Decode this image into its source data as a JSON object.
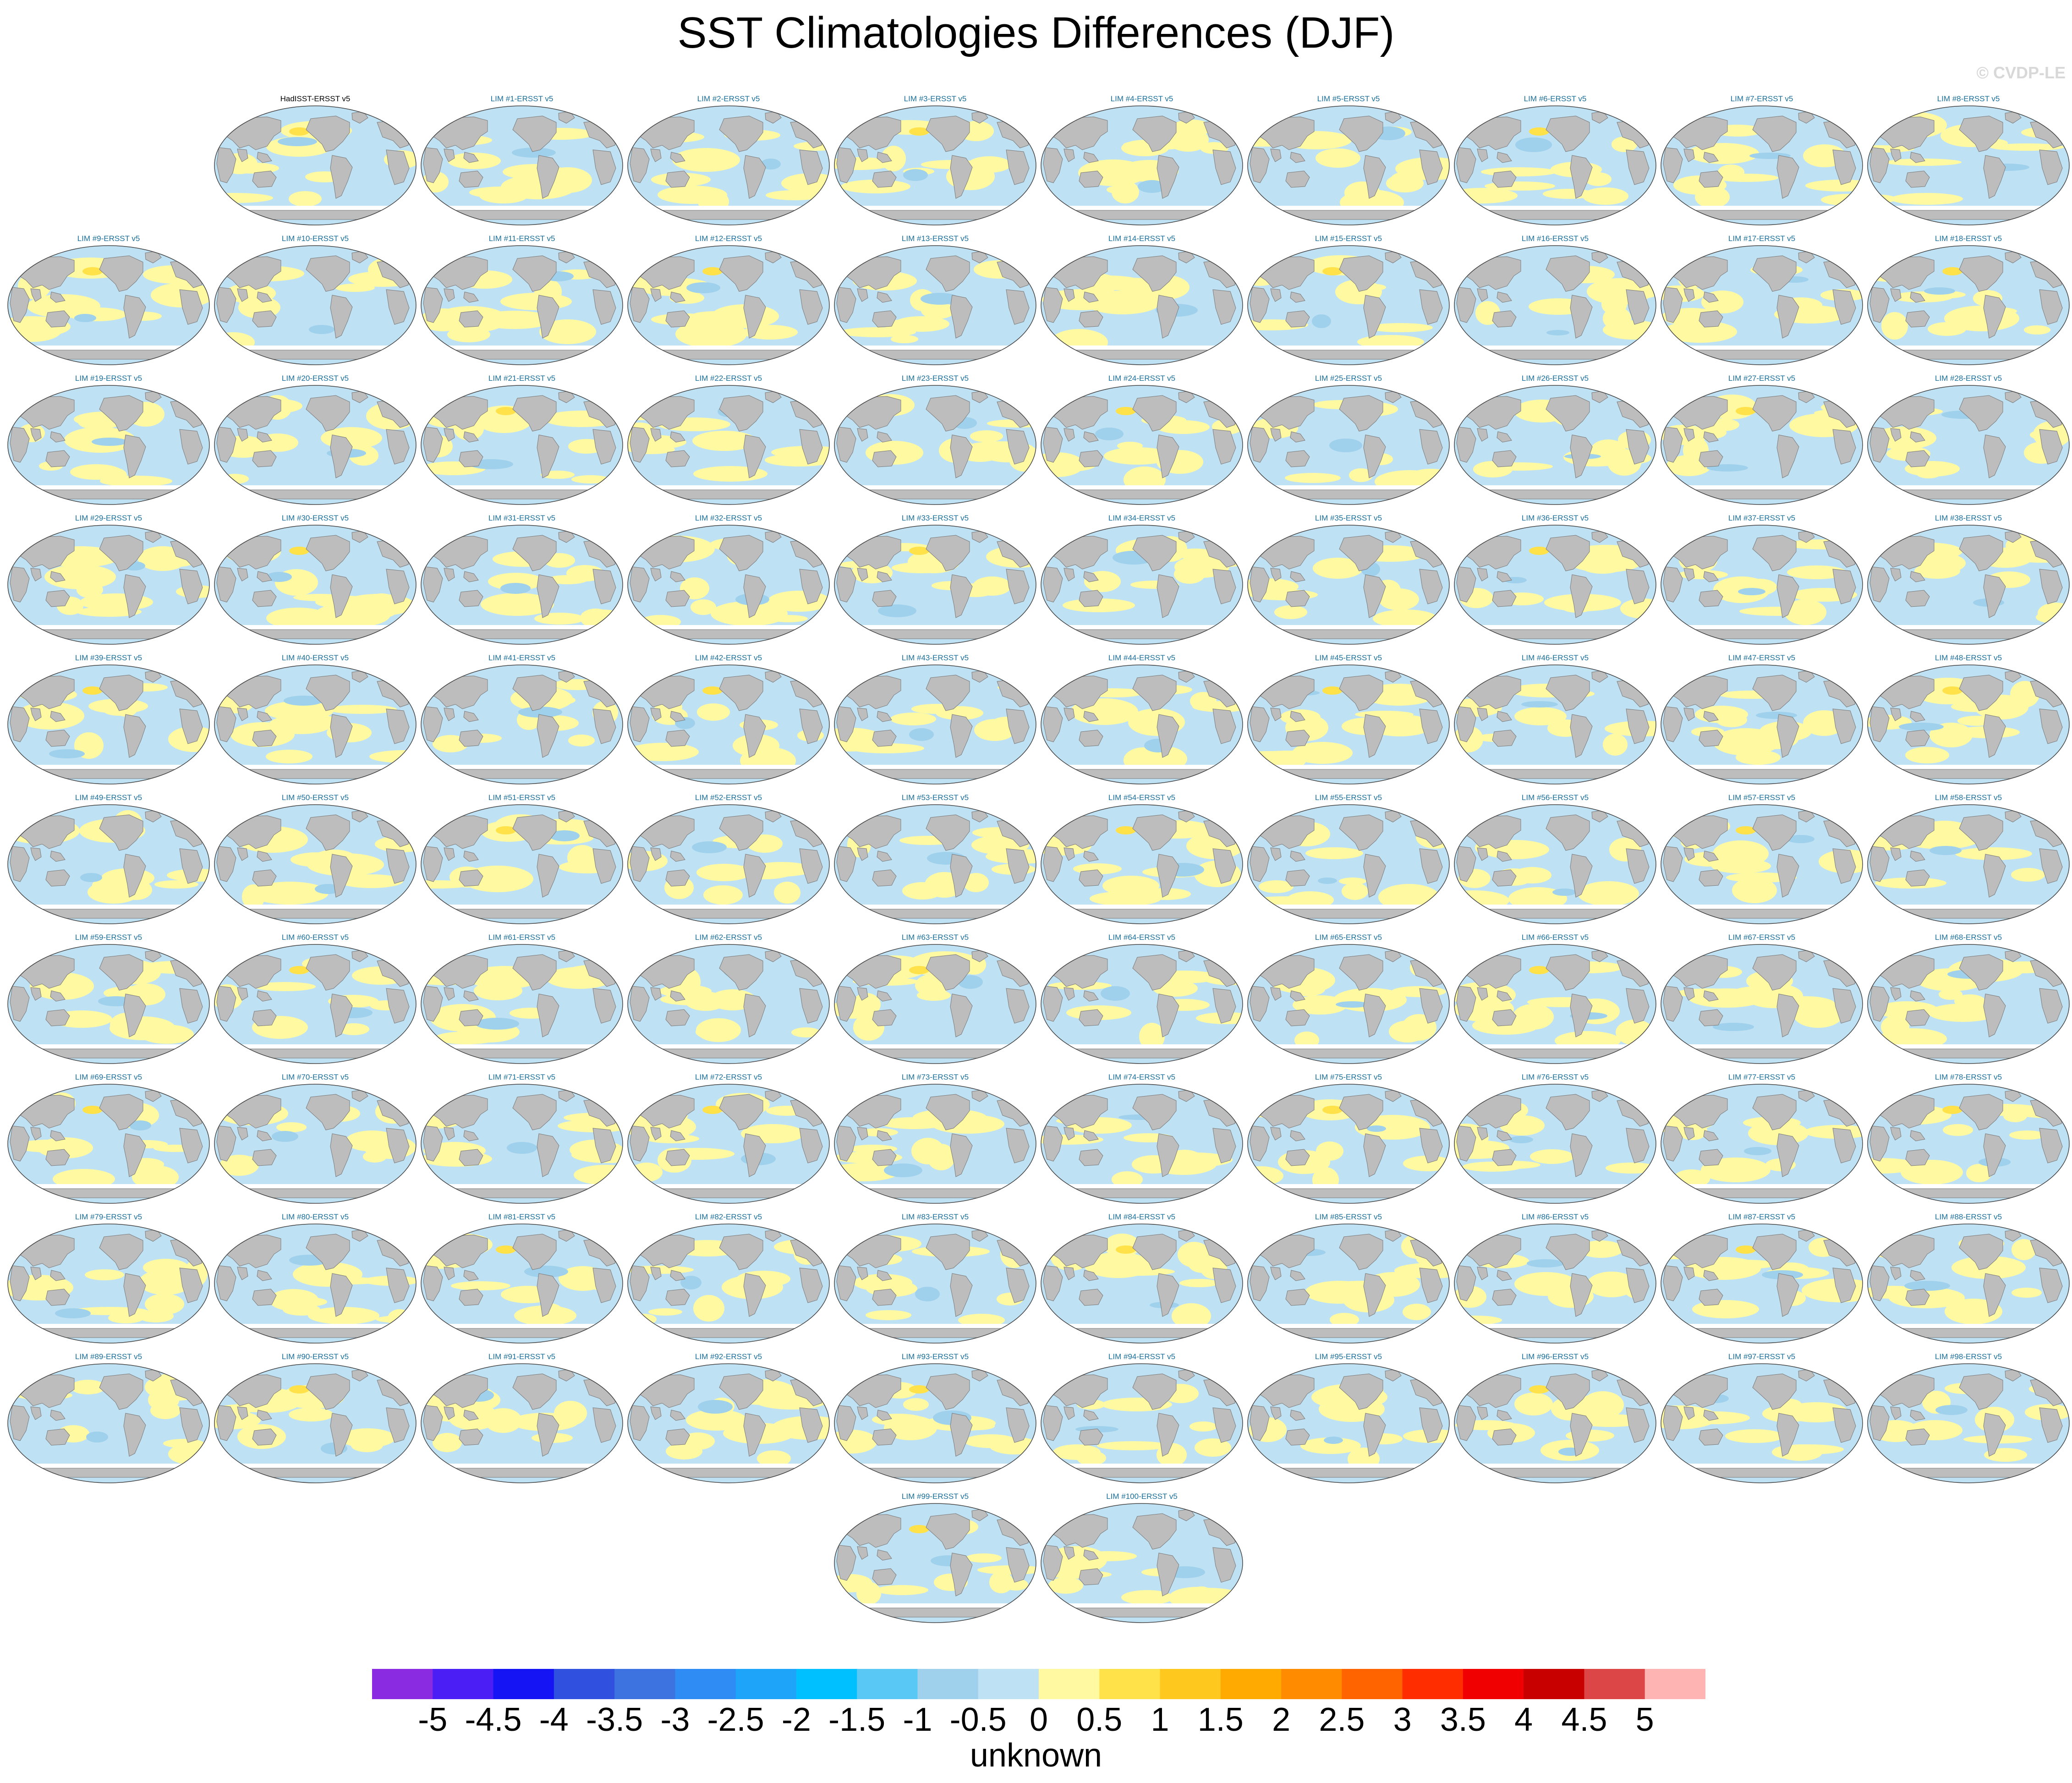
{
  "title": "SST Climatologies Differences (DJF)",
  "watermark": "© CVDP-LE",
  "colors": {
    "ocean_neg": "#bfe1f4",
    "ocean_neg_deep": "#9fd0ec",
    "ocean_pos": "#fffaa2",
    "ocean_pos_strong": "#ffe14a",
    "land": "#bdbdbd",
    "title_blue": "#1a6f9a"
  },
  "panels": [
    "HadISST-ERSST v5",
    "LIM #1-ERSST v5",
    "LIM #2-ERSST v5",
    "LIM #3-ERSST v5",
    "LIM #4-ERSST v5",
    "LIM #5-ERSST v5",
    "LIM #6-ERSST v5",
    "LIM #7-ERSST v5",
    "LIM #8-ERSST v5",
    "LIM #9-ERSST v5",
    "LIM #10-ERSST v5",
    "LIM #11-ERSST v5",
    "LIM #12-ERSST v5",
    "LIM #13-ERSST v5",
    "LIM #14-ERSST v5",
    "LIM #15-ERSST v5",
    "LIM #16-ERSST v5",
    "LIM #17-ERSST v5",
    "LIM #18-ERSST v5",
    "LIM #19-ERSST v5",
    "LIM #20-ERSST v5",
    "LIM #21-ERSST v5",
    "LIM #22-ERSST v5",
    "LIM #23-ERSST v5",
    "LIM #24-ERSST v5",
    "LIM #25-ERSST v5",
    "LIM #26-ERSST v5",
    "LIM #27-ERSST v5",
    "LIM #28-ERSST v5",
    "LIM #29-ERSST v5",
    "LIM #30-ERSST v5",
    "LIM #31-ERSST v5",
    "LIM #32-ERSST v5",
    "LIM #33-ERSST v5",
    "LIM #34-ERSST v5",
    "LIM #35-ERSST v5",
    "LIM #36-ERSST v5",
    "LIM #37-ERSST v5",
    "LIM #38-ERSST v5",
    "LIM #39-ERSST v5",
    "LIM #40-ERSST v5",
    "LIM #41-ERSST v5",
    "LIM #42-ERSST v5",
    "LIM #43-ERSST v5",
    "LIM #44-ERSST v5",
    "LIM #45-ERSST v5",
    "LIM #46-ERSST v5",
    "LIM #47-ERSST v5",
    "LIM #48-ERSST v5",
    "LIM #49-ERSST v5",
    "LIM #50-ERSST v5",
    "LIM #51-ERSST v5",
    "LIM #52-ERSST v5",
    "LIM #53-ERSST v5",
    "LIM #54-ERSST v5",
    "LIM #55-ERSST v5",
    "LIM #56-ERSST v5",
    "LIM #57-ERSST v5",
    "LIM #58-ERSST v5",
    "LIM #59-ERSST v5",
    "LIM #60-ERSST v5",
    "LIM #61-ERSST v5",
    "LIM #62-ERSST v5",
    "LIM #63-ERSST v5",
    "LIM #64-ERSST v5",
    "LIM #65-ERSST v5",
    "LIM #66-ERSST v5",
    "LIM #67-ERSST v5",
    "LIM #68-ERSST v5",
    "LIM #69-ERSST v5",
    "LIM #70-ERSST v5",
    "LIM #71-ERSST v5",
    "LIM #72-ERSST v5",
    "LIM #73-ERSST v5",
    "LIM #74-ERSST v5",
    "LIM #75-ERSST v5",
    "LIM #76-ERSST v5",
    "LIM #77-ERSST v5",
    "LIM #78-ERSST v5",
    "LIM #79-ERSST v5",
    "LIM #80-ERSST v5",
    "LIM #81-ERSST v5",
    "LIM #82-ERSST v5",
    "LIM #83-ERSST v5",
    "LIM #84-ERSST v5",
    "LIM #85-ERSST v5",
    "LIM #86-ERSST v5",
    "LIM #87-ERSST v5",
    "LIM #88-ERSST v5",
    "LIM #89-ERSST v5",
    "LIM #90-ERSST v5",
    "LIM #91-ERSST v5",
    "LIM #92-ERSST v5",
    "LIM #93-ERSST v5",
    "LIM #94-ERSST v5",
    "LIM #95-ERSST v5",
    "LIM #96-ERSST v5",
    "LIM #97-ERSST v5",
    "LIM #98-ERSST v5",
    "LIM #99-ERSST v5",
    "LIM #100-ERSST v5"
  ],
  "colorbar": {
    "labels": [
      "-5",
      "-4.5",
      "-4",
      "-3.5",
      "-3",
      "-2.5",
      "-2",
      "-1.5",
      "-1",
      "-0.5",
      "0",
      "0.5",
      "1",
      "1.5",
      "2",
      "2.5",
      "3",
      "3.5",
      "4",
      "4.5",
      "5"
    ],
    "colors": [
      "#8a2be2",
      "#4b1ef5",
      "#1414f5",
      "#3050e0",
      "#3c73e0",
      "#2f8cf5",
      "#1ea5fa",
      "#00c0ff",
      "#5ac8f5",
      "#9fd0ec",
      "#bfe1f4",
      "#fffaa2",
      "#ffe14a",
      "#ffc81e",
      "#ffaa00",
      "#ff8c00",
      "#ff6400",
      "#ff2d00",
      "#f00000",
      "#c80000",
      "#dc4646",
      "#ffb4b4"
    ],
    "units": "unknown"
  }
}
